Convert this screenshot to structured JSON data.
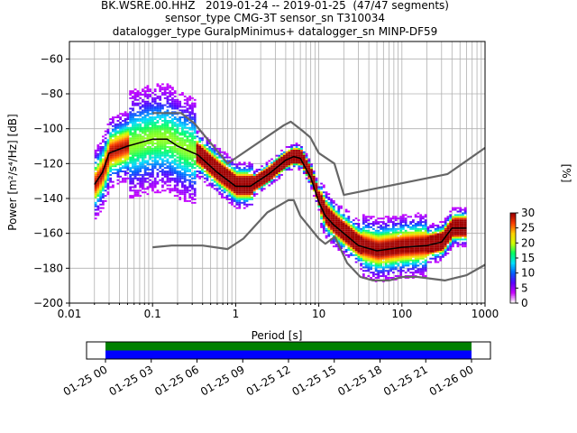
{
  "title": {
    "line1": "BK.WSRE.00.HHZ   2019-01-24 -- 2019-01-25  (47/47 segments)",
    "line2": "sensor_type CMG-3T sensor_sn T310034",
    "line3": "datalogger_type GuralpMinimus+ datalogger_sn MINP-DF59"
  },
  "chart_data": [
    {
      "type": "heatmap",
      "title": "BK.WSRE.00.HHZ   2019-01-24 -- 2019-01-25  (47/47 segments)",
      "xlabel": "Period [s]",
      "ylabel": "Power [m²/s⁴/Hz] [dB]",
      "xscale": "log",
      "xlim": [
        0.01,
        1000
      ],
      "ylim": [
        -200,
        -50
      ],
      "xticks": [
        0.01,
        0.1,
        1,
        10,
        100,
        1000
      ],
      "xtick_labels": [
        "0.01",
        "0.1",
        "1",
        "10",
        "100",
        "1000"
      ],
      "yticks": [
        -200,
        -180,
        -160,
        -140,
        -120,
        -100,
        -80,
        -60
      ],
      "ytick_labels": [
        "−200",
        "−180",
        "−160",
        "−140",
        "−120",
        "−100",
        "−80",
        "−60"
      ],
      "grid": true,
      "series": [
        {
          "name": "",
          "style": "mean",
          "color": "#000000",
          "x": [
            0.02,
            0.025,
            0.03,
            0.05,
            0.1,
            0.15,
            0.2,
            0.35,
            0.6,
            1.0,
            1.5,
            2.5,
            4,
            5,
            6,
            8,
            10,
            12,
            15,
            20,
            30,
            50,
            100,
            200,
            300,
            400,
            600
          ],
          "y": [
            -132,
            -125,
            -114,
            -110,
            -106,
            -106,
            -110,
            -115,
            -125,
            -133,
            -133,
            -126,
            -118,
            -116,
            -117,
            -128,
            -142,
            -150,
            -155,
            -160,
            -167,
            -170,
            -168,
            -167,
            -165,
            -157,
            -157
          ]
        },
        {
          "name": "",
          "style": "noise-model-high",
          "color": "#666666",
          "x": [
            0.1,
            0.22,
            0.32,
            0.8,
            3.8,
            4.6,
            6.3,
            7.9,
            10,
            15.4,
            20,
            354.8,
            1000
          ],
          "y": [
            -91,
            -91,
            -97,
            -120,
            -98,
            -96,
            -101,
            -105,
            -114,
            -120,
            -138,
            -126,
            -111
          ]
        },
        {
          "name": "",
          "style": "noise-model-low",
          "color": "#666666",
          "x": [
            0.1,
            0.17,
            0.4,
            0.8,
            1.24,
            2.4,
            4.3,
            5,
            6,
            10,
            12,
            15.6,
            21.9,
            31.6,
            45,
            70,
            101,
            154,
            328,
            600,
            1000
          ],
          "y": [
            -168,
            -167,
            -167,
            -169,
            -163,
            -148,
            -141,
            -141,
            -150,
            -163,
            -166,
            -162,
            -177,
            -185,
            -187,
            -187,
            -185,
            -185,
            -187,
            -184,
            -178
          ]
        }
      ],
      "colorbar": {
        "label": "[%]",
        "range": [
          0,
          30
        ],
        "ticks": [
          0,
          5,
          10,
          15,
          20,
          25,
          30
        ],
        "colors": [
          "#ffffff",
          "#c800ff",
          "#5a00ff",
          "#0060ff",
          "#00e0ff",
          "#00ff60",
          "#d0ff00",
          "#ffd000",
          "#ff4000",
          "#a00000"
        ]
      }
    },
    {
      "type": "table",
      "title": "",
      "xlabel": "",
      "xtick_labels": [
        "01-25 00",
        "01-25 03",
        "01-25 06",
        "01-25 09",
        "01-25 12",
        "01-25 15",
        "01-25 18",
        "01-25 21",
        "01-26 00"
      ],
      "coverage": [
        {
          "label": "",
          "start_hour": 0,
          "end_hour": 24,
          "color": "#008000"
        },
        {
          "label": "",
          "start_hour": 0,
          "end_hour": 24,
          "color": "#0000ff"
        }
      ]
    }
  ]
}
